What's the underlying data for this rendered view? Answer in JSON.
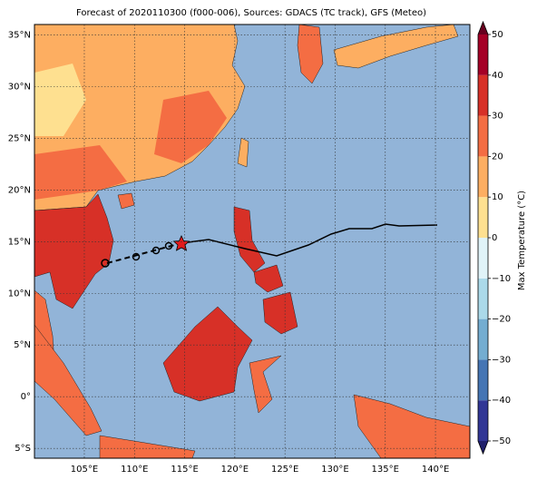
{
  "map": {
    "title": "Forecast of 2020110300 (f000-006), Sources: GDACS (TC track), GFS (Meteo)",
    "xlim": [
      100.03,
      143.43
    ],
    "ylim": [
      -5.95,
      36
    ],
    "lon_ticks": [
      {
        "value": 105,
        "label": "105°E"
      },
      {
        "value": 110,
        "label": "110°E"
      },
      {
        "value": 115,
        "label": "115°E"
      },
      {
        "value": 120,
        "label": "120°E"
      },
      {
        "value": 125,
        "label": "125°E"
      },
      {
        "value": 130,
        "label": "130°E"
      },
      {
        "value": 135,
        "label": "135°E"
      },
      {
        "value": 140,
        "label": "140°E"
      }
    ],
    "lat_ticks": [
      {
        "value": -5,
        "label": "5°S"
      },
      {
        "value": 0,
        "label": "0°"
      },
      {
        "value": 5,
        "label": "5°N"
      },
      {
        "value": 10,
        "label": "10°N"
      },
      {
        "value": 15,
        "label": "15°N"
      },
      {
        "value": 20,
        "label": "20°N"
      },
      {
        "value": 25,
        "label": "25°N"
      },
      {
        "value": 30,
        "label": "30°N"
      },
      {
        "value": 35,
        "label": "35°N"
      }
    ],
    "colorbar": {
      "label": "Max Temperature (°C)",
      "lim": [
        -50,
        50
      ],
      "ticks": [
        {
          "value": -50,
          "label": "−50"
        },
        {
          "value": -40,
          "label": "−40"
        },
        {
          "value": -30,
          "label": "−30"
        },
        {
          "value": -20,
          "label": "−20"
        },
        {
          "value": -10,
          "label": "−10"
        },
        0,
        10,
        20,
        30,
        40,
        50
      ],
      "colors": [
        "#313695",
        "#4575b4",
        "#74add1",
        "#abd9e9",
        "#e0f3f8",
        "#fee090",
        "#fdae61",
        "#f46d43",
        "#d73027",
        "#a50026"
      ],
      "under_color": "#1f1f6b",
      "over_color": "#67001f"
    }
  }
}
